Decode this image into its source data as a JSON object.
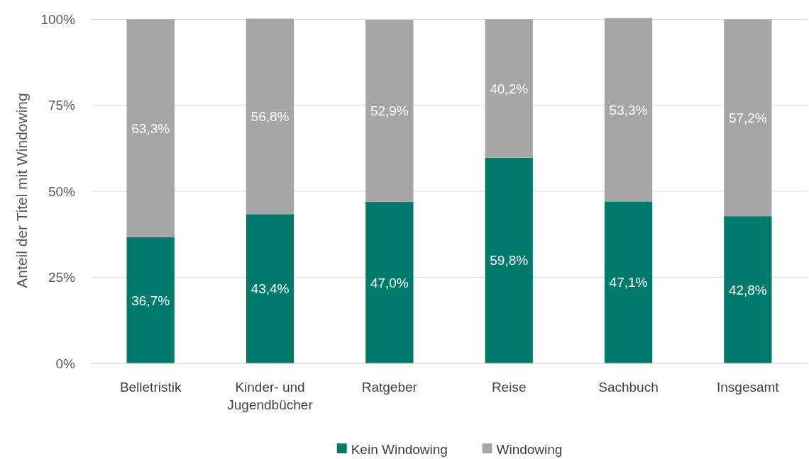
{
  "chart_data": {
    "type": "bar",
    "stacked": true,
    "ylabel": "Anteil der Titel mit Windowing",
    "categories": [
      "Belletristik",
      "Kinder- und Jugendbücher",
      "Ratgeber",
      "Reise",
      "Sachbuch",
      "Insgesamt"
    ],
    "series": [
      {
        "name": "Kein Windowing",
        "color": "#007a6b",
        "values": [
          36.7,
          43.4,
          47.0,
          59.8,
          47.1,
          42.8
        ],
        "value_labels": [
          "36,7%",
          "43,4%",
          "47,0%",
          "59,8%",
          "47,1%",
          "42,8%"
        ]
      },
      {
        "name": "Windowing",
        "color": "#a6a6a6",
        "values": [
          63.3,
          56.8,
          52.9,
          40.2,
          53.3,
          57.2
        ],
        "value_labels": [
          "63,3%",
          "56,8%",
          "52,9%",
          "40,2%",
          "53,3%",
          "57,2%"
        ]
      }
    ],
    "ylim": [
      0,
      100.5
    ],
    "yticks": [
      {
        "value": 0,
        "label": "0%"
      },
      {
        "value": 25,
        "label": "25%"
      },
      {
        "value": 50,
        "label": "50%"
      },
      {
        "value": 75,
        "label": "75%"
      },
      {
        "value": 100,
        "label": "100%"
      }
    ],
    "grid": "y",
    "legend": "bottom"
  }
}
